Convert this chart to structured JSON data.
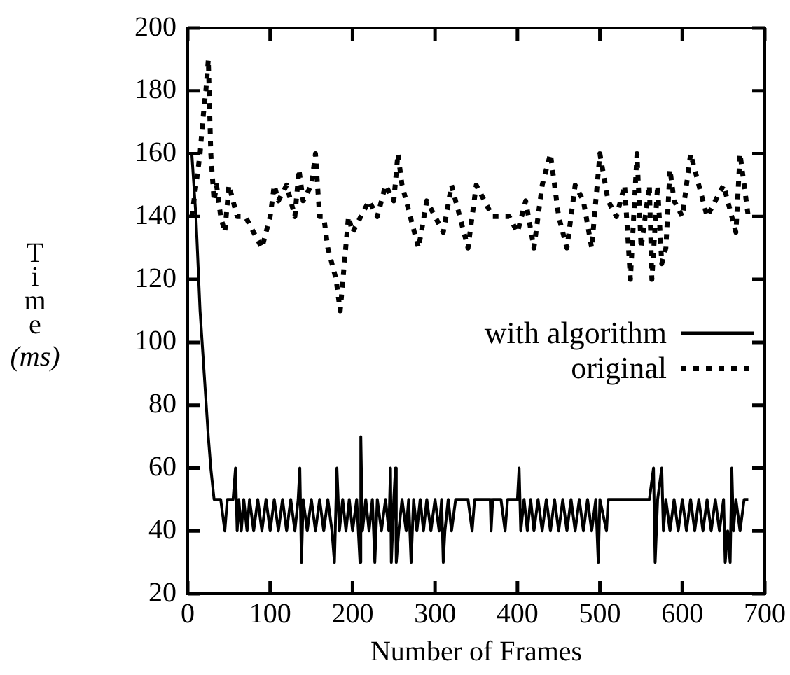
{
  "chart_data": {
    "type": "line",
    "xlabel": "Number of Frames",
    "ylabel": "Time (ms)",
    "xlim": [
      0,
      700
    ],
    "xticks": [
      0,
      100,
      200,
      300,
      400,
      500,
      600,
      700
    ],
    "ylim": [
      20,
      200
    ],
    "yticks": [
      20,
      40,
      60,
      80,
      100,
      120,
      140,
      160,
      180,
      200
    ],
    "grid": false,
    "legend": "right",
    "marker": "none",
    "series": [
      {
        "name": "with algorithm",
        "color": "#000000",
        "line_style": "solid",
        "x": [
          5,
          10,
          15,
          20,
          25,
          28,
          32,
          40,
          45,
          48,
          55,
          58,
          60,
          62,
          65,
          68,
          72,
          75,
          80,
          85,
          90,
          95,
          100,
          105,
          110,
          115,
          120,
          125,
          130,
          134,
          136,
          138,
          140,
          145,
          150,
          155,
          160,
          165,
          170,
          175,
          178,
          181,
          184,
          188,
          192,
          196,
          200,
          205,
          209,
          210,
          212,
          216,
          220,
          224,
          227,
          230,
          235,
          240,
          244,
          246,
          247,
          250,
          252,
          253,
          256,
          260,
          265,
          268,
          271,
          274,
          278,
          282,
          286,
          290,
          295,
          300,
          305,
          308,
          310,
          312,
          316,
          320,
          325,
          340,
          345,
          348,
          367,
          368,
          370,
          380,
          385,
          388,
          400,
          402,
          404,
          408,
          412,
          416,
          420,
          425,
          430,
          435,
          440,
          445,
          450,
          455,
          460,
          465,
          470,
          475,
          480,
          485,
          490,
          495,
          498,
          500,
          508,
          510,
          560,
          565,
          567,
          570,
          575,
          577,
          580,
          585,
          590,
          595,
          600,
          605,
          610,
          615,
          620,
          625,
          630,
          635,
          640,
          645,
          650,
          652,
          655,
          658,
          660,
          662,
          665,
          670,
          675,
          680
        ],
        "values": [
          160,
          140,
          110,
          90,
          70,
          60,
          50,
          50,
          40,
          50,
          50,
          60,
          40,
          50,
          40,
          50,
          40,
          50,
          40,
          50,
          40,
          50,
          40,
          50,
          40,
          50,
          40,
          50,
          40,
          50,
          60,
          30,
          50,
          40,
          50,
          40,
          50,
          40,
          50,
          40,
          30,
          60,
          40,
          50,
          40,
          50,
          40,
          50,
          30,
          70,
          40,
          50,
          40,
          50,
          30,
          50,
          40,
          50,
          40,
          60,
          30,
          50,
          60,
          30,
          40,
          50,
          40,
          50,
          30,
          50,
          40,
          50,
          40,
          50,
          40,
          50,
          40,
          50,
          30,
          40,
          50,
          40,
          50,
          50,
          40,
          50,
          50,
          40,
          50,
          50,
          40,
          50,
          50,
          60,
          40,
          50,
          40,
          50,
          40,
          50,
          40,
          50,
          40,
          50,
          40,
          50,
          40,
          50,
          40,
          50,
          40,
          50,
          40,
          50,
          30,
          50,
          40,
          50,
          50,
          60,
          30,
          50,
          60,
          40,
          50,
          40,
          50,
          40,
          50,
          40,
          50,
          40,
          50,
          40,
          50,
          40,
          50,
          40,
          50,
          30,
          40,
          30,
          60,
          40,
          50,
          40,
          50,
          50
        ]
      },
      {
        "name": "original",
        "color": "#000000",
        "line_style": "dotted",
        "x": [
          5,
          10,
          15,
          18,
          22,
          25,
          28,
          32,
          35,
          40,
          45,
          50,
          60,
          70,
          80,
          90,
          100,
          105,
          110,
          120,
          130,
          135,
          140,
          150,
          155,
          160,
          165,
          170,
          175,
          180,
          185,
          190,
          195,
          200,
          210,
          220,
          230,
          240,
          250,
          255,
          260,
          270,
          280,
          290,
          300,
          310,
          320,
          330,
          340,
          350,
          360,
          370,
          380,
          390,
          400,
          410,
          420,
          430,
          440,
          450,
          460,
          470,
          480,
          490,
          500,
          510,
          520,
          530,
          537,
          545,
          550,
          555,
          560,
          563,
          570,
          575,
          580,
          585,
          590,
          600,
          610,
          620,
          630,
          640,
          650,
          660,
          665,
          670,
          675,
          680
        ],
        "values": [
          140,
          150,
          160,
          170,
          180,
          190,
          160,
          145,
          150,
          140,
          135,
          150,
          140,
          140,
          135,
          130,
          140,
          150,
          145,
          150,
          140,
          155,
          145,
          150,
          160,
          140,
          140,
          130,
          125,
          120,
          110,
          125,
          140,
          135,
          140,
          145,
          140,
          150,
          145,
          160,
          150,
          140,
          130,
          145,
          140,
          135,
          150,
          140,
          130,
          150,
          145,
          140,
          140,
          140,
          135,
          145,
          130,
          150,
          160,
          140,
          130,
          150,
          145,
          130,
          160,
          145,
          140,
          150,
          120,
          160,
          130,
          140,
          150,
          120,
          150,
          125,
          130,
          155,
          145,
          140,
          160,
          150,
          140,
          145,
          150,
          140,
          135,
          160,
          150,
          140
        ]
      }
    ]
  }
}
